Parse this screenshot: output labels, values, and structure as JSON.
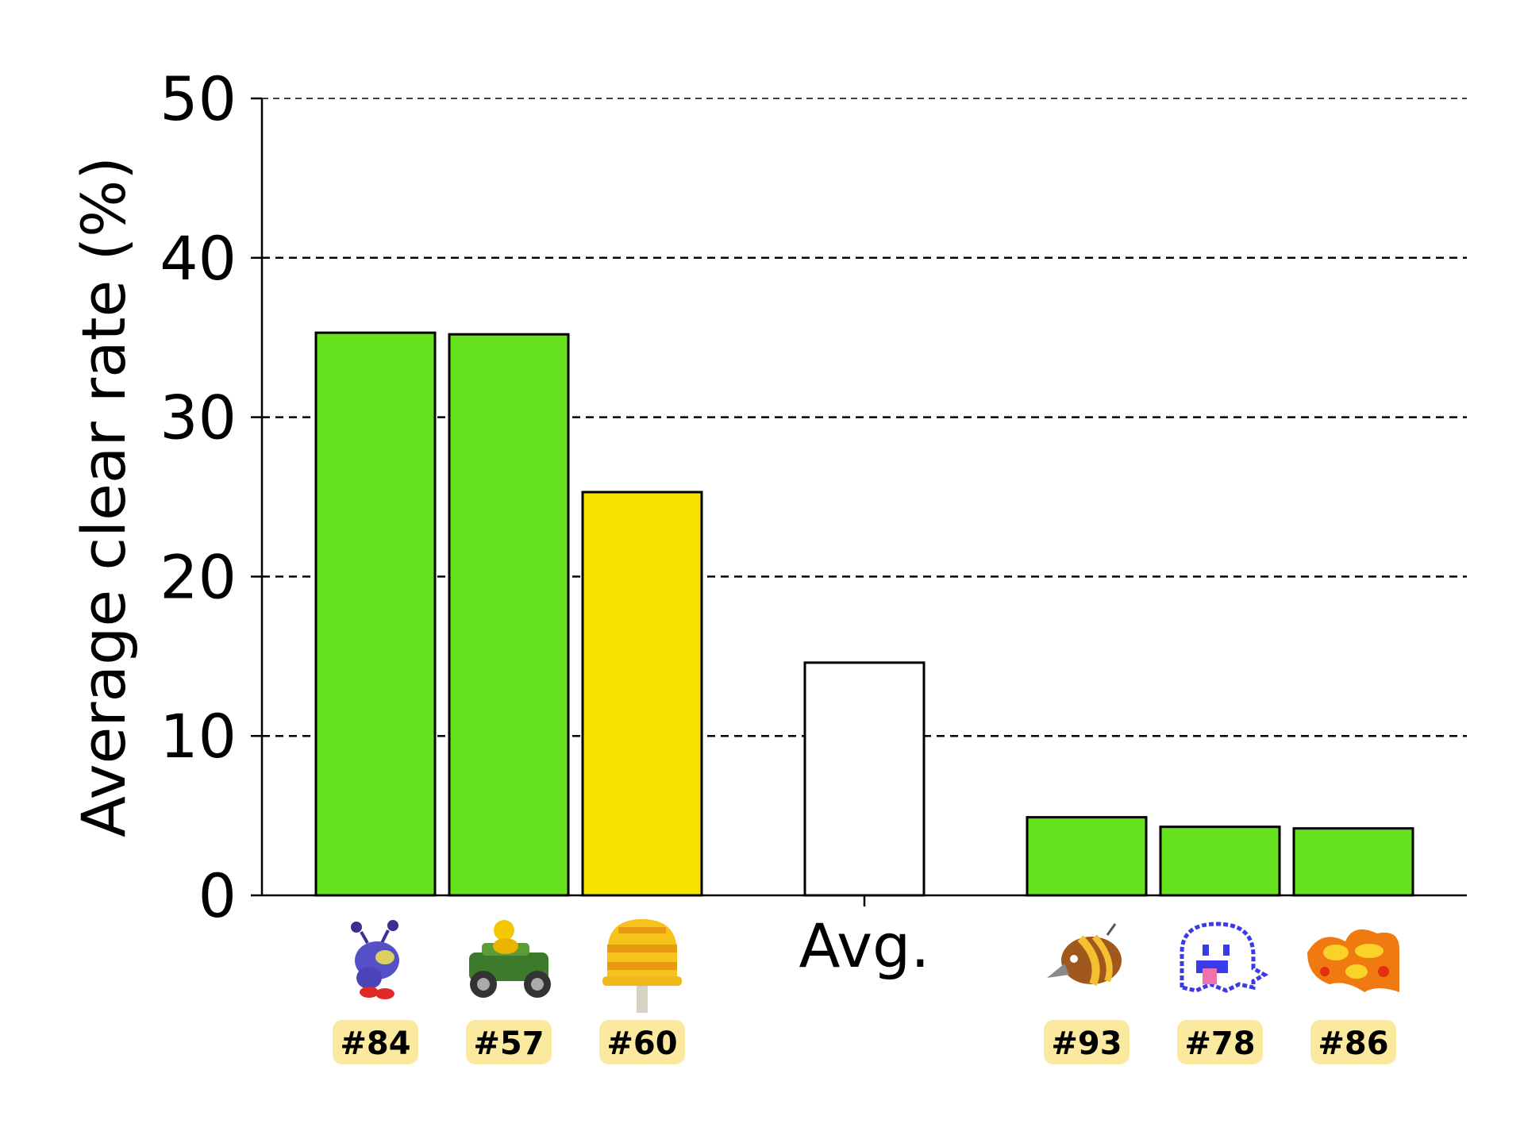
{
  "chart_data": {
    "type": "bar",
    "ylabel": "Average clear rate (%)",
    "ylim": [
      0,
      50
    ],
    "yticks": [
      0,
      10,
      20,
      30,
      40,
      50
    ],
    "grid": "horizontal dashed",
    "categories": [
      "#84",
      "#57",
      "#60",
      "Avg.",
      "#93",
      "#78",
      "#86"
    ],
    "values": [
      35.3,
      35.2,
      25.3,
      14.6,
      4.9,
      4.3,
      4.2
    ],
    "bar_colors": [
      "#66e21f",
      "#66e21f",
      "#f7e300",
      "#ffffff",
      "#66e21f",
      "#66e21f",
      "#66e21f"
    ],
    "icons": [
      "blue-bob-omb-icon",
      "koopa-kart-icon",
      "yellow-mushroom-platform-icon",
      "",
      "brown-bird-icon",
      "pixel-boo-ghost-icon",
      "fire-bar-icon"
    ],
    "badge_color": "#fbe9a0"
  }
}
